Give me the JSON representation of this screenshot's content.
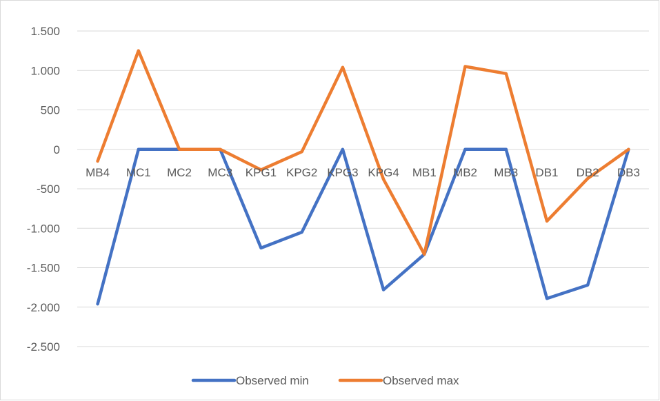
{
  "chart_data": {
    "type": "line",
    "title": "",
    "xlabel": "",
    "ylabel": "",
    "categories": [
      "MB4",
      "MC1",
      "MC2",
      "MC3",
      "KPG1",
      "KPG2",
      "KPG3",
      "KPG4",
      "MB1",
      "MB2",
      "MB3",
      "DB1",
      "DB2",
      "DB3"
    ],
    "ylim": [
      -2500,
      1500
    ],
    "yticks": [
      1500,
      1000,
      500,
      0,
      -500,
      -1000,
      -1500,
      -2000,
      -2500
    ],
    "ytick_labels": [
      "1.500",
      "1.000",
      "500",
      "0",
      "-500",
      "-1.000",
      "-1.500",
      "-2.000",
      "-2.500"
    ],
    "grid": true,
    "legend_position": "bottom",
    "series": [
      {
        "name": "Observed min",
        "color": "#4472c4",
        "values": [
          -1960,
          0,
          0,
          0,
          -1250,
          -1050,
          0,
          -1780,
          -1330,
          0,
          0,
          -1890,
          -1720,
          0
        ]
      },
      {
        "name": "Observed max",
        "color": "#ed7d31",
        "values": [
          -150,
          1250,
          0,
          0,
          -260,
          -30,
          1040,
          -380,
          -1330,
          1050,
          960,
          -910,
          -370,
          0
        ]
      }
    ]
  }
}
